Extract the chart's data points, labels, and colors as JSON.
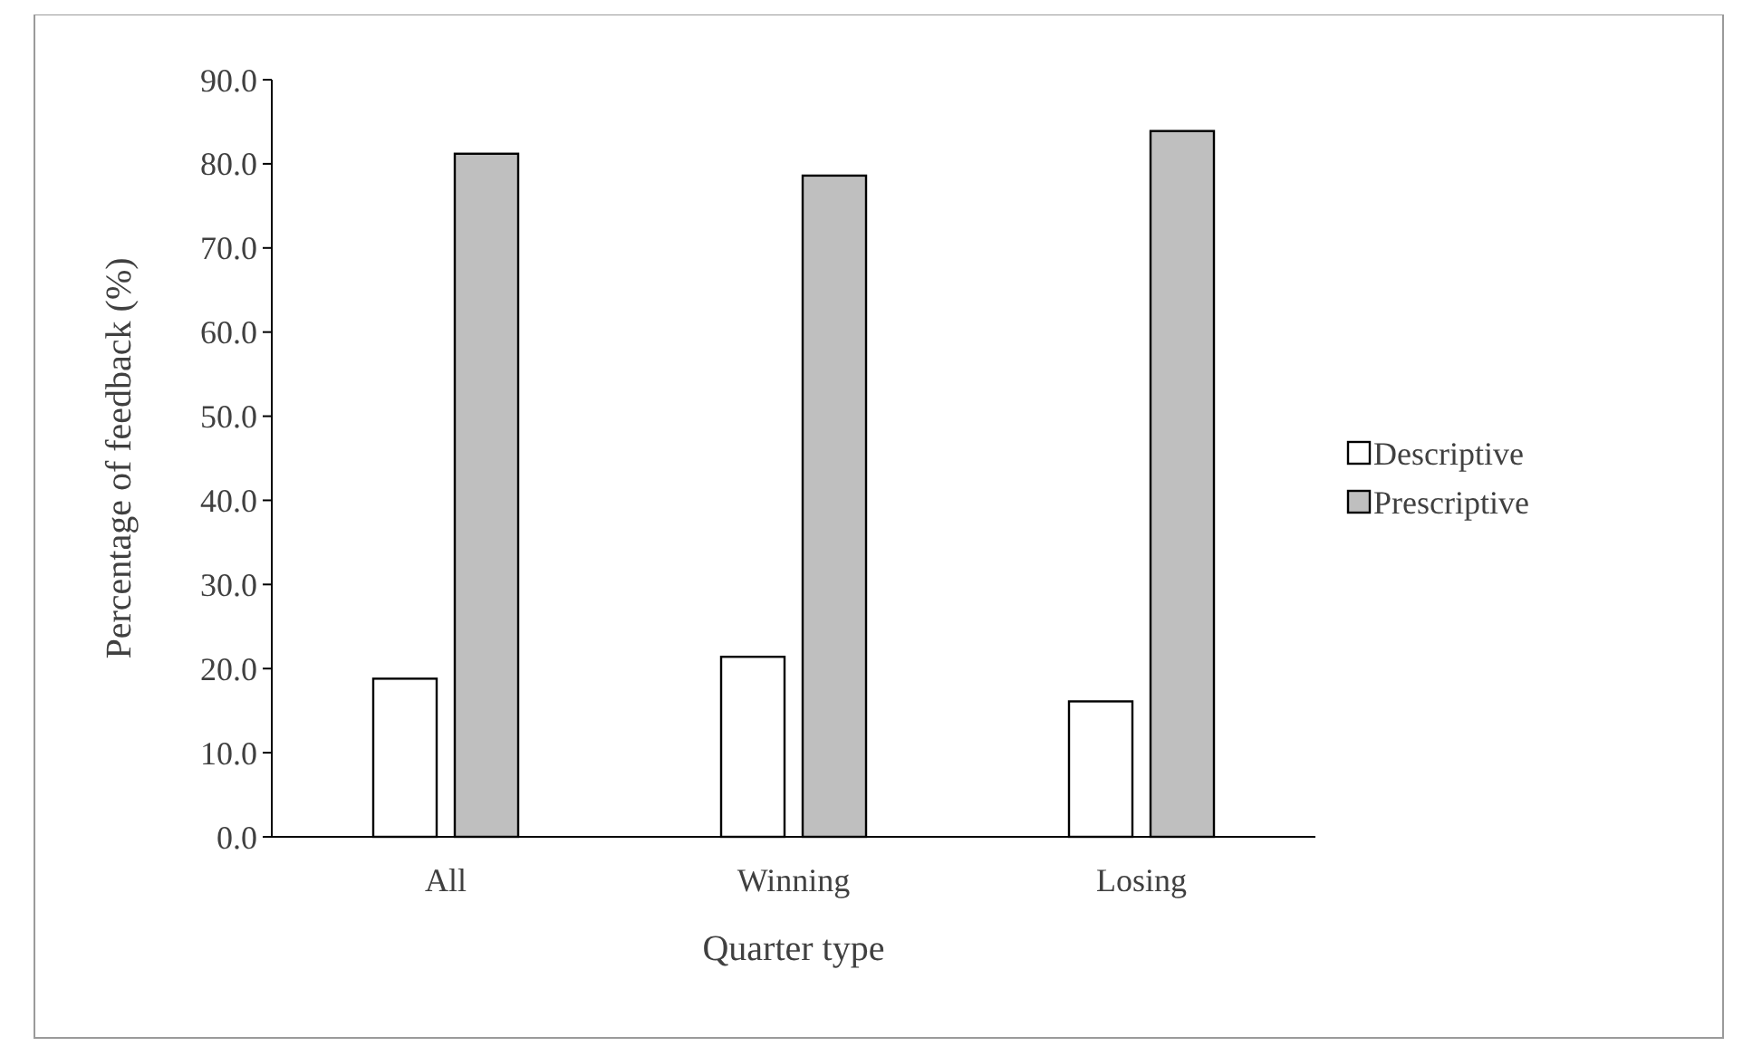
{
  "chart_data": {
    "type": "bar",
    "xlabel": "Quarter type",
    "ylabel": "Percentage of feedback (%)",
    "categories": [
      "All",
      "Winning",
      "Losing"
    ],
    "series": [
      {
        "name": "Descriptive",
        "color": "#ffffff",
        "values": [
          18.8,
          21.4,
          16.1
        ]
      },
      {
        "name": "Prescriptive",
        "color": "#bfbfbf",
        "values": [
          81.2,
          78.6,
          83.9
        ]
      }
    ],
    "ylim": [
      0,
      90
    ],
    "yticks": [
      {
        "value": 0,
        "label": "0.0"
      },
      {
        "value": 10,
        "label": "10.0"
      },
      {
        "value": 20,
        "label": "20.0"
      },
      {
        "value": 30,
        "label": "30.0"
      },
      {
        "value": 40,
        "label": "40.0"
      },
      {
        "value": 50,
        "label": "50.0"
      },
      {
        "value": 60,
        "label": "60.0"
      },
      {
        "value": 70,
        "label": "70.0"
      },
      {
        "value": 80,
        "label": "80.0"
      },
      {
        "value": 90,
        "label": "90.0"
      }
    ],
    "grid": false,
    "legend": "right"
  }
}
